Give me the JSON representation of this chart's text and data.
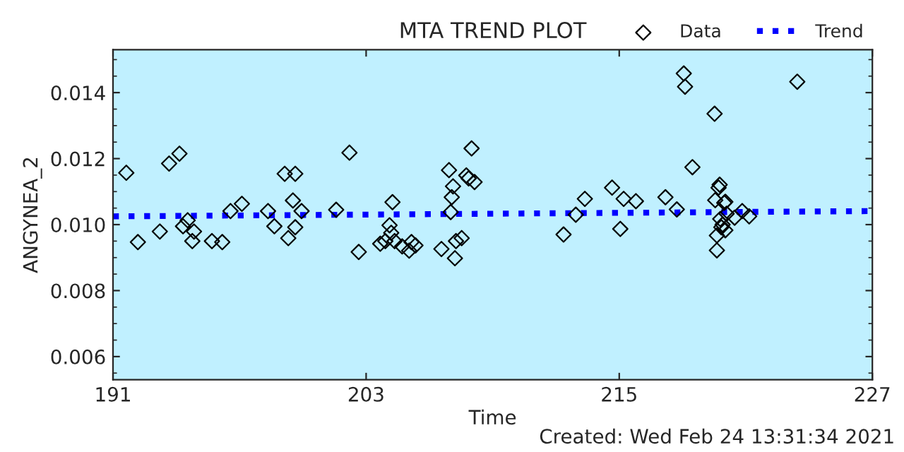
{
  "chart_data": {
    "type": "scatter",
    "title": "MTA TREND PLOT",
    "xlabel": "Time",
    "ylabel": "ANGYNEA_2",
    "annotations": [
      "Created: Wed Feb 24 13:31:34 2021"
    ],
    "xlim": [
      191,
      227
    ],
    "xticks": [
      191,
      203,
      215,
      227
    ],
    "ylim": [
      0.0053,
      0.0153
    ],
    "yticks": [
      0.006,
      0.008,
      {
        "value": 0.01,
        "label": "0.010"
      },
      0.012,
      0.014
    ],
    "grid": false,
    "legend": "top right",
    "series": [
      {
        "name": "Data",
        "color": "#000000",
        "marker": "diamond",
        "x": [
          191.63,
          192.18,
          193.22,
          193.66,
          194.15,
          194.32,
          194.54,
          194.84,
          194.76,
          195.69,
          196.18,
          196.57,
          197.11,
          198.35,
          198.65,
          199.14,
          199.31,
          199.53,
          199.64,
          199.64,
          199.94,
          201.58,
          202.21,
          202.65,
          203.67,
          203.91,
          204.11,
          204.19,
          204.25,
          204.35,
          204.71,
          205.04,
          205.15,
          205.34,
          206.57,
          206.93,
          207.06,
          207.12,
          207.01,
          207.21,
          207.26,
          207.53,
          207.75,
          207.86,
          208.0,
          208.14,
          212.36,
          212.94,
          213.37,
          214.66,
          215.05,
          215.21,
          215.79,
          217.19,
          217.73,
          218.06,
          218.12,
          218.47,
          219.52,
          219.55,
          219.63,
          219.63,
          219.71,
          219.76,
          219.79,
          219.84,
          219.9,
          219.98,
          220.03,
          220.03,
          220.09,
          220.47,
          220.83,
          221.16,
          223.44
        ],
        "values": [
          0.01157,
          0.00947,
          0.00979,
          0.01185,
          0.01215,
          0.00995,
          0.01013,
          0.00979,
          0.0095,
          0.0095,
          0.00947,
          0.01041,
          0.01063,
          0.01041,
          0.00995,
          0.01154,
          0.00959,
          0.01073,
          0.01154,
          0.00992,
          0.01041,
          0.01045,
          0.01218,
          0.00917,
          0.00942,
          0.0095,
          0.00998,
          0.00975,
          0.01068,
          0.0095,
          0.00934,
          0.00921,
          0.00947,
          0.00937,
          0.00926,
          0.01165,
          0.01083,
          0.01116,
          0.01038,
          0.00898,
          0.0095,
          0.00959,
          0.01149,
          0.0114,
          0.01231,
          0.01129,
          0.0097,
          0.0103,
          0.01078,
          0.01112,
          0.00987,
          0.01078,
          0.01071,
          0.01083,
          0.01046,
          0.01458,
          0.01418,
          0.01174,
          0.01336,
          0.01074,
          0.00922,
          0.00967,
          0.01112,
          0.01121,
          0.01017,
          0.00992,
          0.01,
          0.01066,
          0.01069,
          0.00983,
          0.01033,
          0.01021,
          0.01041,
          0.01025,
          0.01433
        ]
      },
      {
        "name": "Trend",
        "type": "line",
        "color": "#0000ff",
        "marker": "none",
        "line_style": "dotted",
        "x": [
          191,
          227
        ],
        "values": [
          0.01025,
          0.01041
        ]
      }
    ]
  }
}
